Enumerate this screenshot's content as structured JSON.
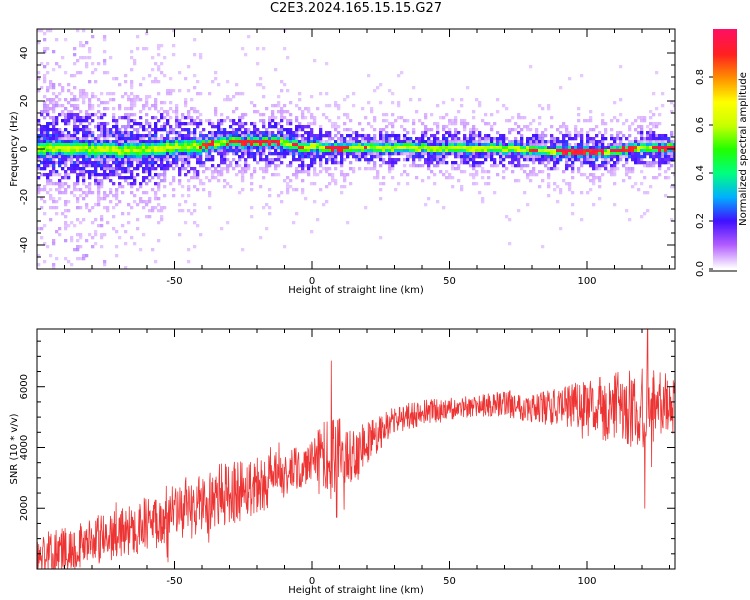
{
  "figure": {
    "title": "C2E3.2024.165.15.15.G27"
  },
  "chart_data": [
    {
      "type": "heatmap",
      "title": "C2E3.2024.165.15.15.G27",
      "xlabel": "Height of straight line (km)",
      "ylabel": "Frequency (Hz)",
      "xlim": [
        -100,
        132
      ],
      "ylim": [
        -50,
        50
      ],
      "x_ticks": [
        -50,
        0,
        50,
        100
      ],
      "y_ticks": [
        -40,
        -20,
        0,
        20,
        40
      ],
      "x_tick_labels": [
        "-50",
        "0",
        "50",
        "100"
      ],
      "y_tick_labels": [
        "-40",
        "-20",
        "0",
        "20",
        "40"
      ],
      "colorbar": {
        "label": "Normalized spectral amplitude",
        "range": [
          0,
          1
        ],
        "ticks": [
          0,
          0.2,
          0.4,
          0.6,
          0.8
        ],
        "tick_labels": [
          "0.0",
          "0.2",
          "0.4",
          "0.6",
          "0.8"
        ],
        "colormap": [
          "#ffffff",
          "#b25cff",
          "#4010ff",
          "#00b0ff",
          "#00ff80",
          "#20ff00",
          "#c8ff00",
          "#ffff00",
          "#ff9000",
          "#ff2020",
          "#ff1060"
        ]
      },
      "ridge_frequency_hz": [
        {
          "x": -100,
          "f": 1.0
        },
        {
          "x": -90,
          "f": 1.0
        },
        {
          "x": -80,
          "f": 0.5
        },
        {
          "x": -70,
          "f": 0.0
        },
        {
          "x": -60,
          "f": 0.5
        },
        {
          "x": -50,
          "f": 1.5
        },
        {
          "x": -40,
          "f": 2.0
        },
        {
          "x": -30,
          "f": 3.5
        },
        {
          "x": -20,
          "f": 3.5
        },
        {
          "x": -12,
          "f": 3.5
        },
        {
          "x": -5,
          "f": 1.5
        },
        {
          "x": 0,
          "f": 1.5
        },
        {
          "x": 10,
          "f": 1.0
        },
        {
          "x": 20,
          "f": 1.0
        },
        {
          "x": 40,
          "f": 1.0
        },
        {
          "x": 60,
          "f": 1.0
        },
        {
          "x": 78,
          "f": 0.5
        },
        {
          "x": 90,
          "f": -0.5
        },
        {
          "x": 110,
          "f": -0.5
        },
        {
          "x": 120,
          "f": 1.0
        },
        {
          "x": 132,
          "f": 1.0
        }
      ],
      "peak_amplitude_segments": [
        {
          "x_start": -42,
          "x_end": -36
        },
        {
          "x_start": -32,
          "x_end": -12
        },
        {
          "x_start": -8,
          "x_end": -3
        },
        {
          "x_start": 4,
          "x_end": 13
        },
        {
          "x_start": 18,
          "x_end": 20
        },
        {
          "x_start": 78,
          "x_end": 82
        },
        {
          "x_start": 88,
          "x_end": 106
        },
        {
          "x_start": 108,
          "x_end": 118
        },
        {
          "x_start": 123,
          "x_end": 132
        }
      ],
      "colors": {
        "low": "#b25cff",
        "mid": "#00ff80",
        "high": "#ff2020"
      }
    },
    {
      "type": "line",
      "xlabel": "Height of straight line (km)",
      "ylabel": "SNR (10 * v/v)",
      "xlim": [
        -100,
        132
      ],
      "ylim": [
        0,
        7900
      ],
      "x_ticks": [
        -50,
        0,
        50,
        100
      ],
      "y_ticks": [
        2000,
        4000,
        6000
      ],
      "x_tick_labels": [
        "-50",
        "0",
        "50",
        "100"
      ],
      "y_tick_labels": [
        "2000",
        "4000",
        "6000"
      ],
      "series": [
        {
          "color": "#ee3333",
          "points": [
            {
              "x": -100,
              "y": 400
            },
            {
              "x": -90,
              "y": 650
            },
            {
              "x": -80,
              "y": 900
            },
            {
              "x": -70,
              "y": 1150
            },
            {
              "x": -60,
              "y": 1500
            },
            {
              "x": -50,
              "y": 1800
            },
            {
              "x": -40,
              "y": 2150
            },
            {
              "x": -30,
              "y": 2500
            },
            {
              "x": -20,
              "y": 2800
            },
            {
              "x": -10,
              "y": 3050
            },
            {
              "x": 0,
              "y": 3500
            },
            {
              "x": 8,
              "y": 3700
            },
            {
              "x": 15,
              "y": 3800
            },
            {
              "x": 22,
              "y": 4300
            },
            {
              "x": 30,
              "y": 4900
            },
            {
              "x": 40,
              "y": 5150
            },
            {
              "x": 50,
              "y": 5250
            },
            {
              "x": 60,
              "y": 5350
            },
            {
              "x": 70,
              "y": 5450
            },
            {
              "x": 80,
              "y": 5300
            },
            {
              "x": 90,
              "y": 5300
            },
            {
              "x": 100,
              "y": 5300
            },
            {
              "x": 110,
              "y": 5300
            },
            {
              "x": 120,
              "y": 5250
            },
            {
              "x": 132,
              "y": 5400
            }
          ],
          "spread": [
            {
              "x": -100,
              "y": 700
            },
            {
              "x": -60,
              "y": 900
            },
            {
              "x": -30,
              "y": 1100
            },
            {
              "x": 0,
              "y": 700
            },
            {
              "x": 5,
              "y": 1500
            },
            {
              "x": 15,
              "y": 900
            },
            {
              "x": 30,
              "y": 450
            },
            {
              "x": 60,
              "y": 350
            },
            {
              "x": 80,
              "y": 500
            },
            {
              "x": 100,
              "y": 900
            },
            {
              "x": 120,
              "y": 1400
            },
            {
              "x": 132,
              "y": 1000
            }
          ]
        }
      ],
      "notable_points": [
        {
          "x": 7,
          "y": 6850
        },
        {
          "x": 9,
          "y": 1700
        },
        {
          "x": 122,
          "y": 7900
        },
        {
          "x": 121,
          "y": 2000
        }
      ]
    }
  ]
}
